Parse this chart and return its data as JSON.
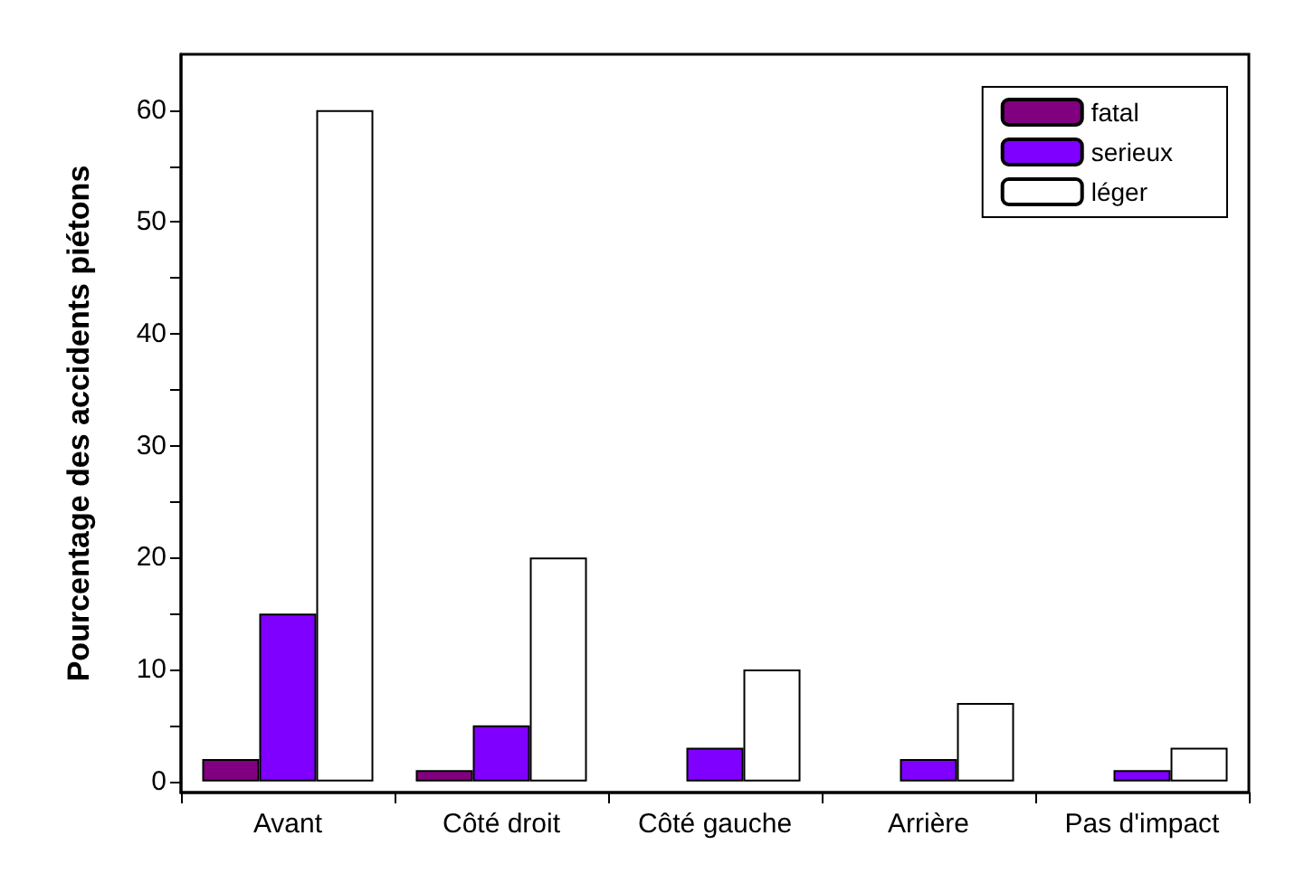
{
  "chart_data": {
    "type": "bar",
    "ylabel": "Pourcentage des accidents piétons",
    "categories": [
      "Avant",
      "Côté droit",
      "Côté gauche",
      "Arrière",
      "Pas d'impact"
    ],
    "series": [
      {
        "name": "fatal",
        "color": "#800080",
        "values": [
          2,
          1,
          null,
          null,
          null
        ]
      },
      {
        "name": "serieux",
        "color": "#8000ff",
        "values": [
          15,
          5,
          3,
          2,
          1
        ]
      },
      {
        "name": "léger",
        "color": "#ffffff",
        "values": [
          60,
          20,
          10,
          7,
          3
        ]
      }
    ],
    "ylim": [
      -1,
      65
    ],
    "yticks": [
      0,
      {
        "value": 5,
        "label": null
      },
      10,
      {
        "value": 15,
        "label": null
      },
      20,
      {
        "value": 25,
        "label": null
      },
      30,
      {
        "value": 35,
        "label": null
      },
      40,
      {
        "value": 45,
        "label": null
      },
      50,
      {
        "value": 55,
        "label": null
      },
      60
    ],
    "grid": false,
    "legend": "top right"
  }
}
